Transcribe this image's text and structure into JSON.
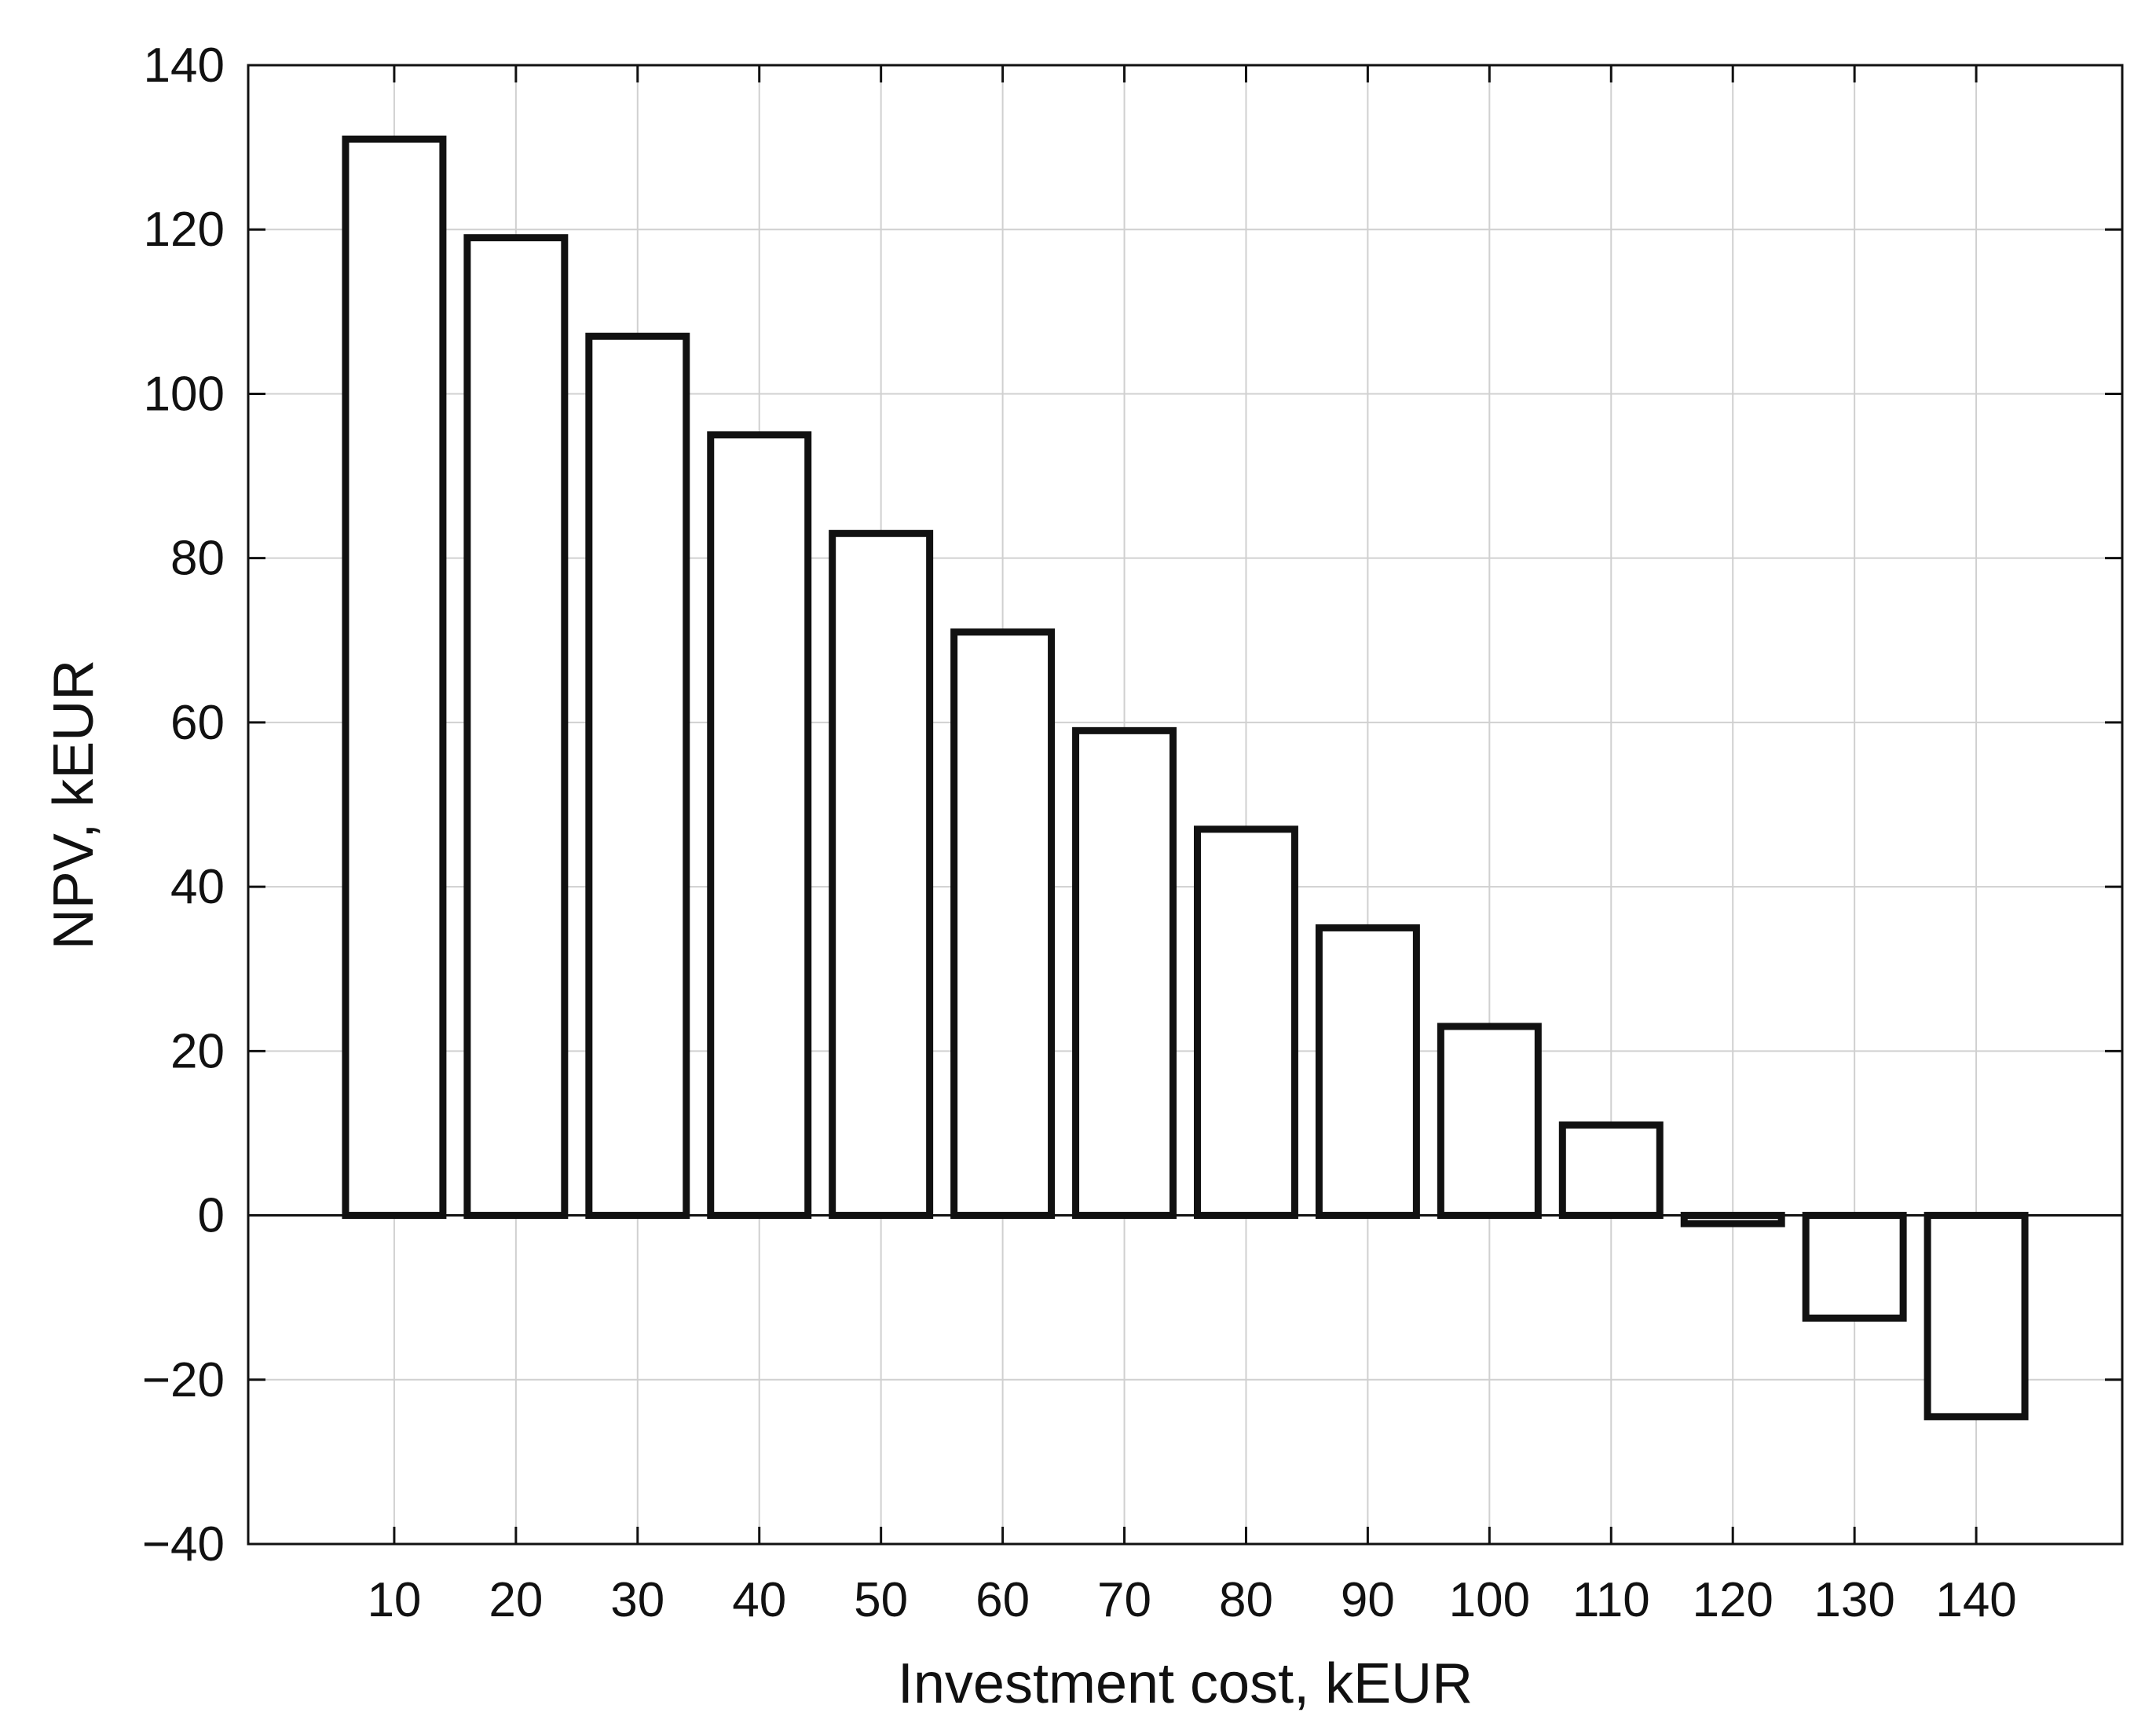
{
  "chart_data": {
    "type": "bar",
    "xlabel": "Investment cost, kEUR",
    "ylabel": "NPV, kEUR",
    "categories": [
      "10",
      "20",
      "30",
      "40",
      "50",
      "60",
      "70",
      "80",
      "90",
      "100",
      "110",
      "120",
      "130",
      "140"
    ],
    "values": [
      131,
      119,
      107,
      95,
      83,
      71,
      59,
      47,
      35,
      23,
      11,
      -1,
      -12.5,
      -24.5
    ],
    "ylim": [
      -40,
      140
    ],
    "yticks": [
      "140",
      "120",
      "100",
      "80",
      "60",
      "40",
      "20",
      "0",
      "−20",
      "−40"
    ],
    "ytick_values": [
      140,
      120,
      100,
      80,
      60,
      40,
      20,
      0,
      -20,
      -40
    ],
    "grid": true,
    "bar_fill": "#ffffff",
    "bar_stroke": "#111111",
    "grid_color": "#d0d0d0",
    "axis_color": "#111111"
  }
}
